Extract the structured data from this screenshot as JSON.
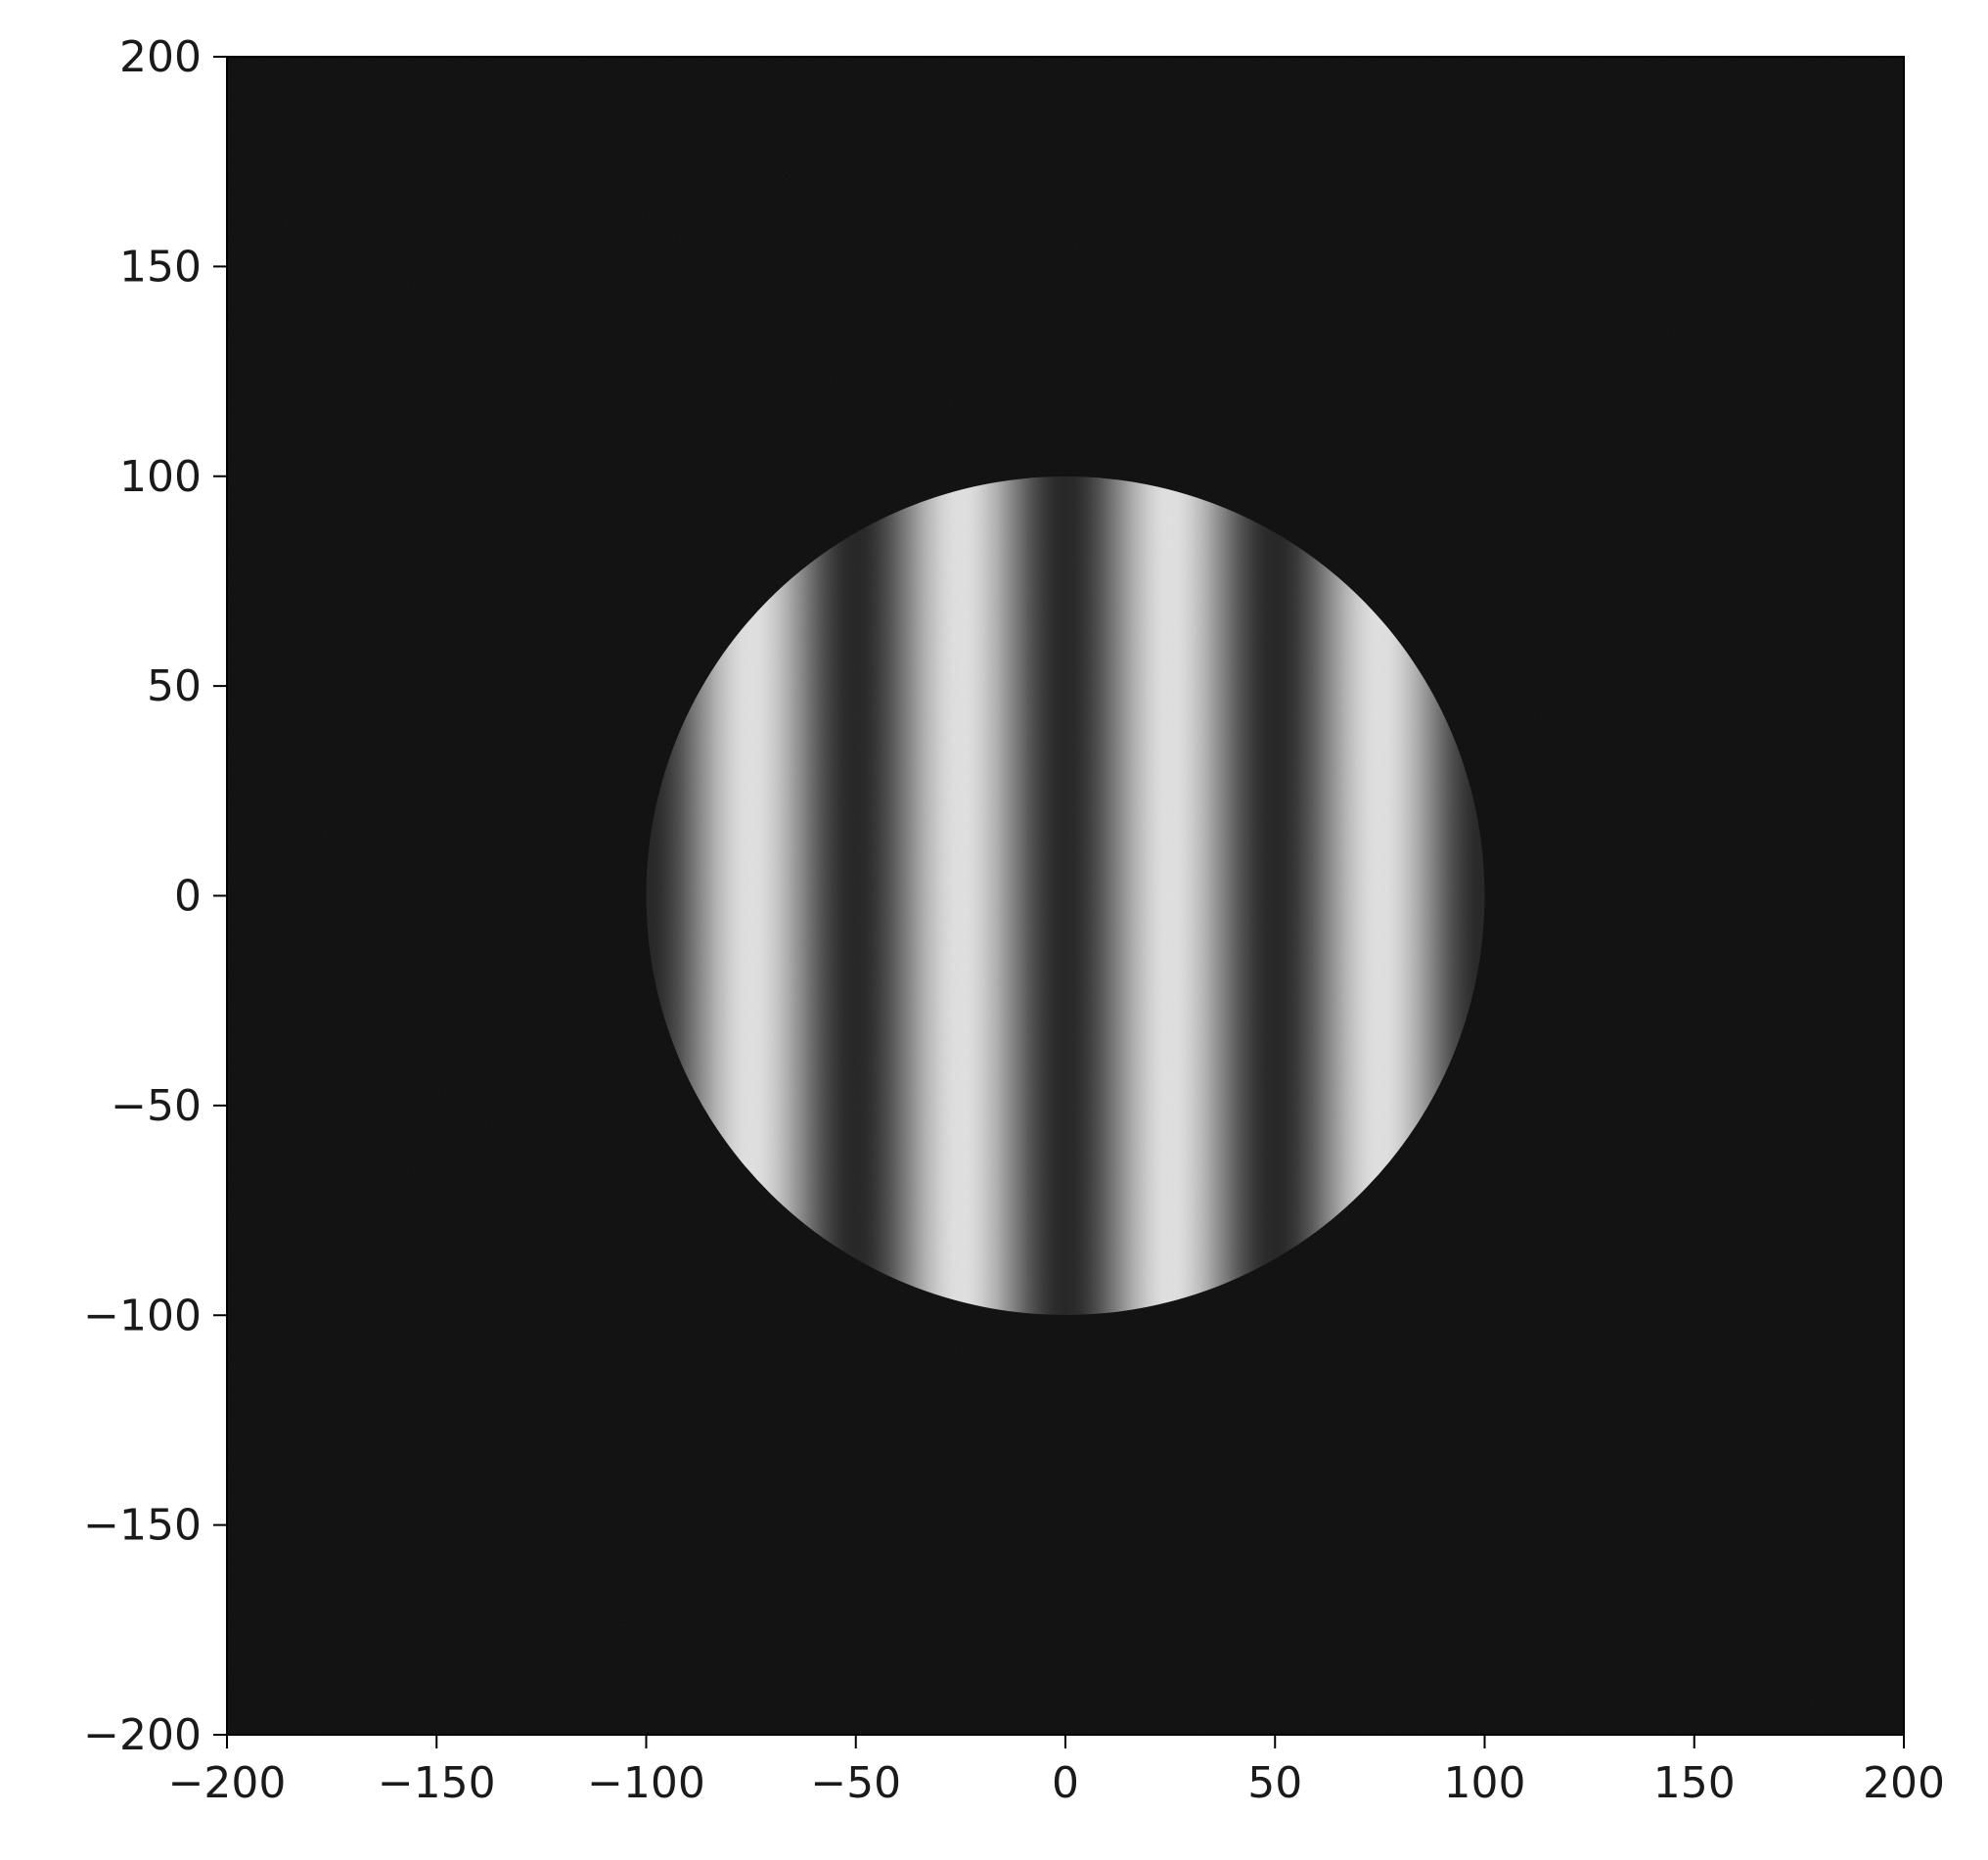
{
  "chart_data": {
    "type": "heatmap",
    "title": "",
    "xlabel": "",
    "ylabel": "",
    "xlim": [
      -200,
      200
    ],
    "ylim": [
      -200,
      200
    ],
    "grid": false,
    "colormap": "gray",
    "x_ticks": [
      "−200",
      "−150",
      "−100",
      "−50",
      "0",
      "50",
      "100",
      "150",
      "200"
    ],
    "y_ticks": [
      "200",
      "150",
      "100",
      "50",
      "0",
      "−50",
      "−100",
      "−150",
      "−200"
    ],
    "x_tick_values": [
      -200,
      -150,
      -100,
      -50,
      0,
      50,
      100,
      150,
      200
    ],
    "y_tick_values": [
      200,
      150,
      100,
      50,
      0,
      -50,
      -100,
      -150,
      -200
    ],
    "pattern": {
      "shape": "circular aperture with vertical interference fringes",
      "aperture_center": [
        0,
        0
      ],
      "aperture_radius": 100,
      "fringe_orientation": "vertical",
      "fringe_period": 50,
      "bright_fringe_x": [
        -75,
        -25,
        25,
        75
      ],
      "dark_fringe_x": [
        -50,
        0,
        50
      ],
      "background": "black with noise",
      "noise": true
    },
    "colors": {
      "background": "#080808",
      "fringe_bright": "#e2e2e2",
      "fringe_dark": "#1e1e1e"
    }
  }
}
